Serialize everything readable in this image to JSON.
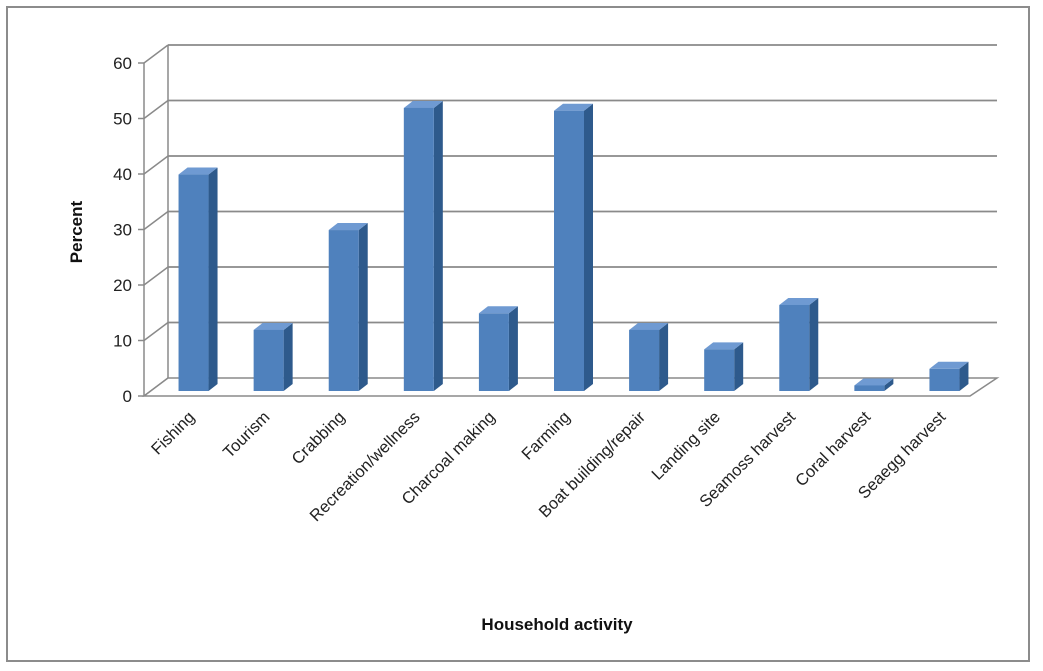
{
  "chart_data": {
    "type": "bar",
    "title": "",
    "xlabel": "Household activity",
    "ylabel": "Percent",
    "ylim": [
      0,
      60
    ],
    "yticks": [
      0,
      10,
      20,
      30,
      40,
      50,
      60
    ],
    "ytick_labels": [
      "0",
      "10",
      "20",
      "30",
      "40",
      "50",
      "60"
    ],
    "categories": [
      "Fishing",
      "Tourism",
      "Crabbing",
      "Recreation/wellness",
      "Charcoal making",
      "Farming",
      "Boat building/repair",
      "Landing site",
      "Seamoss harvest",
      "Coral harvest",
      "Seaegg harvest"
    ],
    "values": [
      39,
      11,
      29,
      51,
      14,
      50.5,
      11,
      7.5,
      15.5,
      1,
      4
    ],
    "grid": true,
    "legend": "none",
    "style": "3d-column",
    "colors": {
      "bar_front": "#4F81BD",
      "bar_side": "#2E5A8C",
      "bar_top": "#6F9AD2",
      "grid": "#8A8A8A"
    }
  }
}
